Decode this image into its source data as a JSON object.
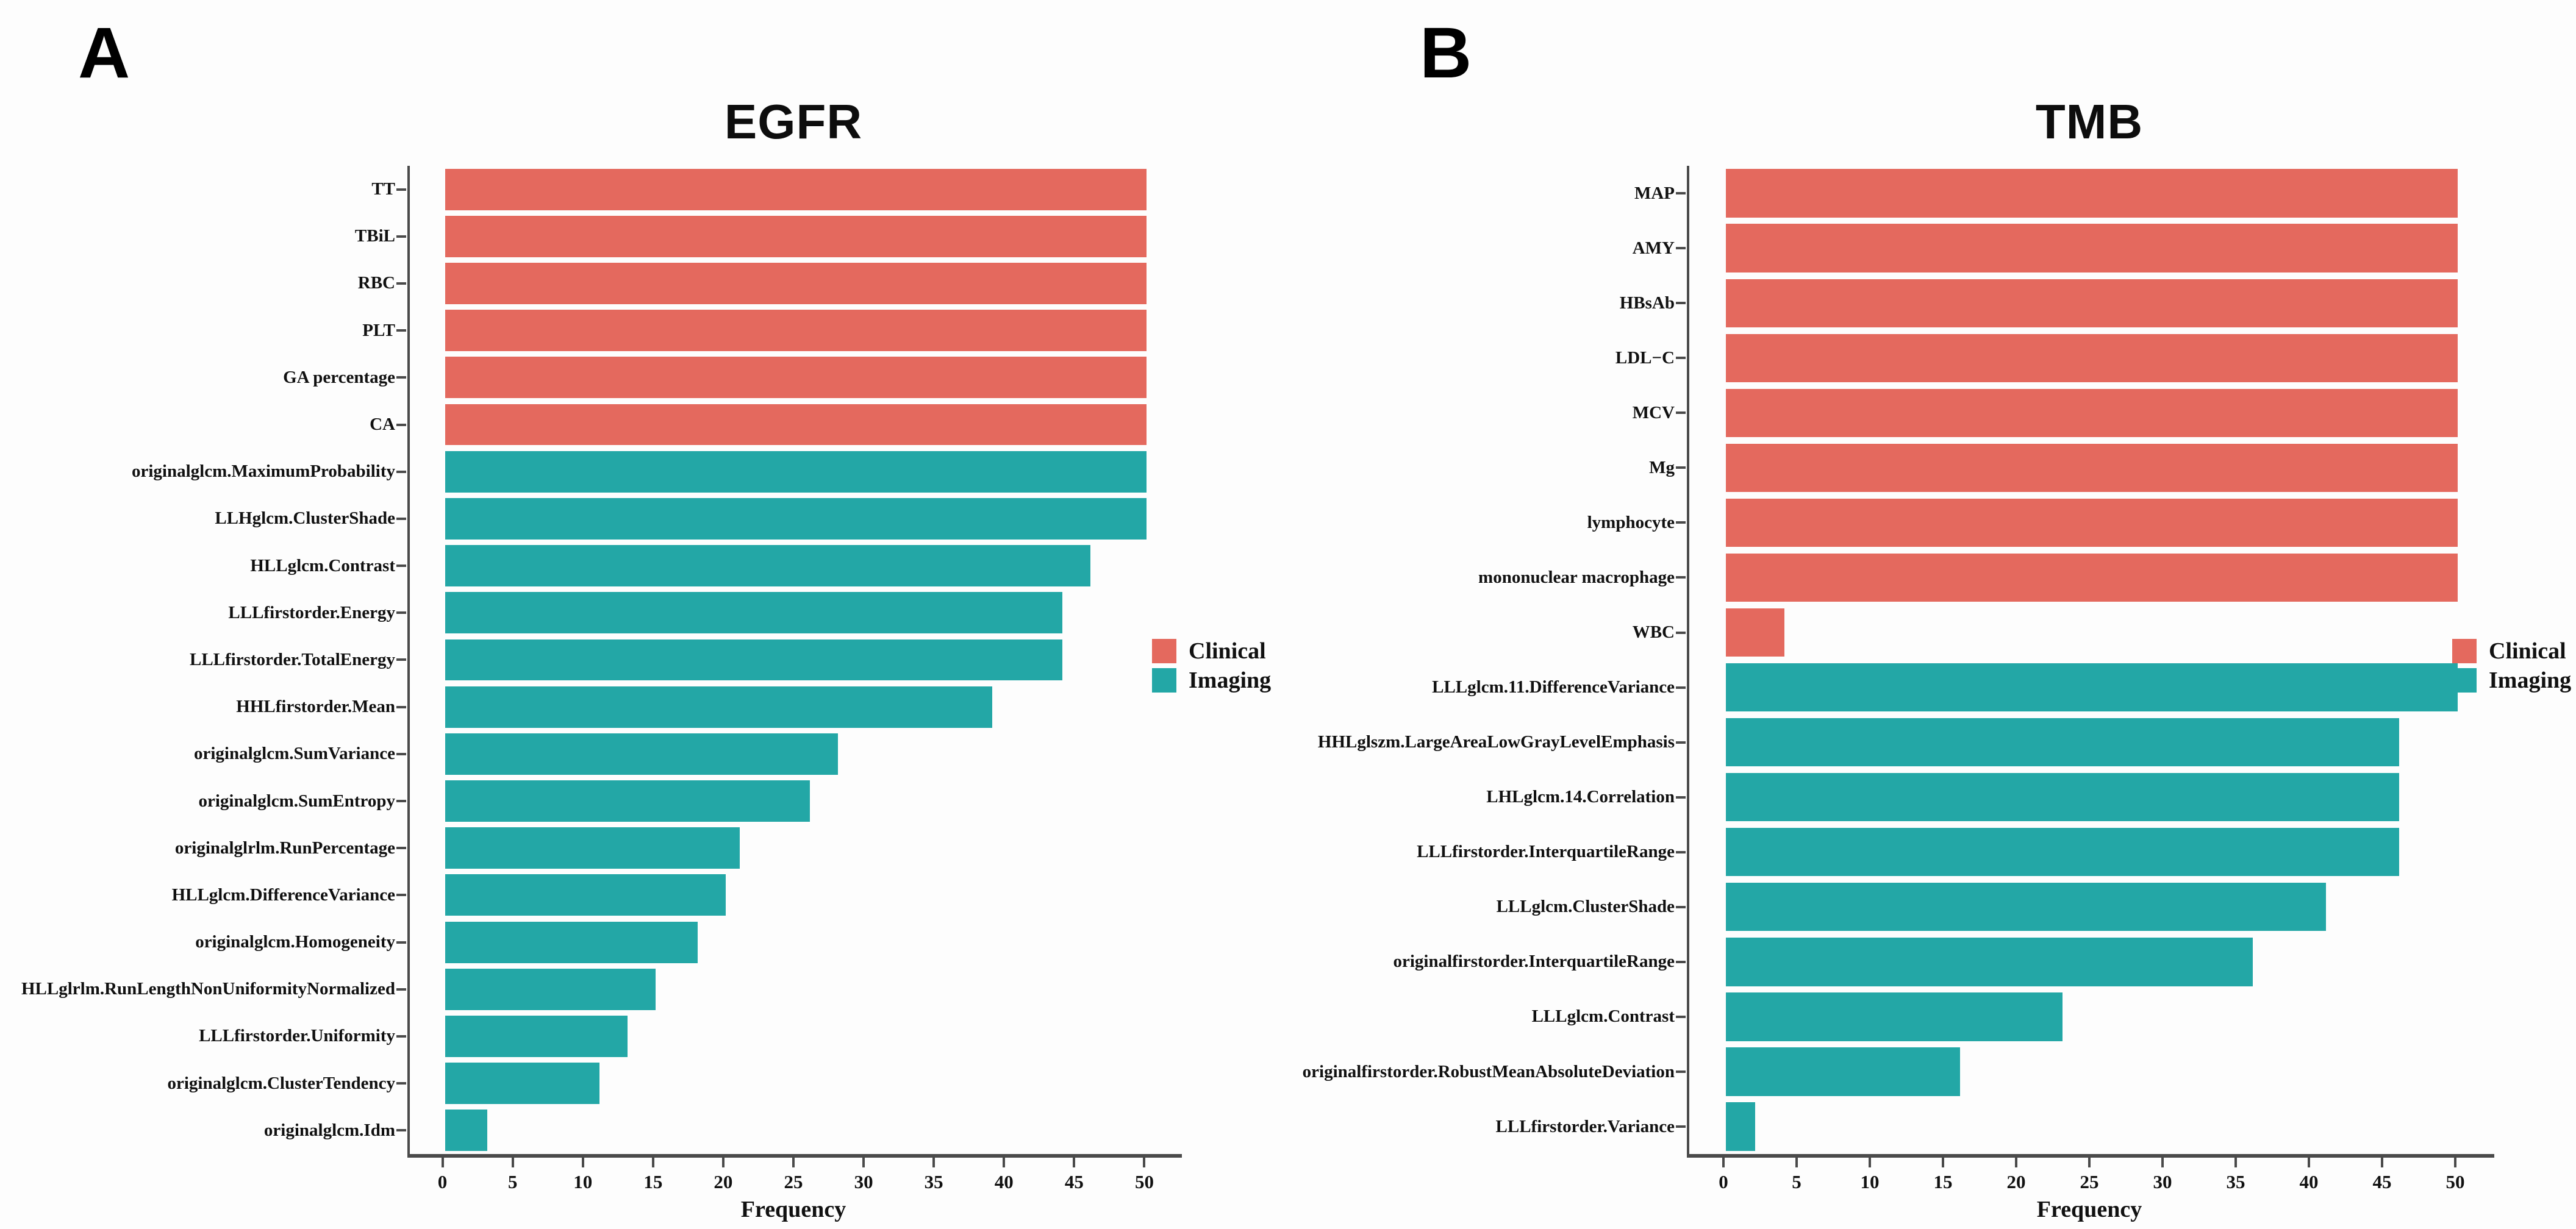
{
  "figure": {
    "background": "#fdfdfd",
    "colors": {
      "clinical": "#E4695E",
      "imaging": "#23A7A6",
      "axis": "#4a4a4a",
      "text": "#111111"
    }
  },
  "legend": {
    "clinical": "Clinical",
    "imaging": "Imaging"
  },
  "chart_data": [
    {
      "panel_letter": "A",
      "type": "bar",
      "orientation": "horizontal",
      "title": "EGFR",
      "xlabel": "Frequency",
      "xlim": [
        0,
        50
      ],
      "xticks": [
        0,
        5,
        10,
        15,
        20,
        25,
        30,
        35,
        40,
        45,
        50
      ],
      "legend_position": "right",
      "legend_entries": [
        "Clinical",
        "Imaging"
      ],
      "bars": [
        {
          "label": "TT",
          "group": "Clinical",
          "value": 50
        },
        {
          "label": "TBiL",
          "group": "Clinical",
          "value": 50
        },
        {
          "label": "RBC",
          "group": "Clinical",
          "value": 50
        },
        {
          "label": "PLT",
          "group": "Clinical",
          "value": 50
        },
        {
          "label": "GA percentage",
          "group": "Clinical",
          "value": 50
        },
        {
          "label": "CA",
          "group": "Clinical",
          "value": 50
        },
        {
          "label": "originalglcm.MaximumProbability",
          "group": "Imaging",
          "value": 50
        },
        {
          "label": "LLHglcm.ClusterShade",
          "group": "Imaging",
          "value": 50
        },
        {
          "label": "HLLglcm.Contrast",
          "group": "Imaging",
          "value": 46
        },
        {
          "label": "LLLfirstorder.Energy",
          "group": "Imaging",
          "value": 44
        },
        {
          "label": "LLLfirstorder.TotalEnergy",
          "group": "Imaging",
          "value": 44
        },
        {
          "label": "HHLfirstorder.Mean",
          "group": "Imaging",
          "value": 39
        },
        {
          "label": "originalglcm.SumVariance",
          "group": "Imaging",
          "value": 28
        },
        {
          "label": "originalglcm.SumEntropy",
          "group": "Imaging",
          "value": 26
        },
        {
          "label": "originalglrlm.RunPercentage",
          "group": "Imaging",
          "value": 21
        },
        {
          "label": "HLLglcm.DifferenceVariance",
          "group": "Imaging",
          "value": 20
        },
        {
          "label": "originalglcm.Homogeneity",
          "group": "Imaging",
          "value": 18
        },
        {
          "label": "HLLglrlm.RunLengthNonUniformityNormalized",
          "group": "Imaging",
          "value": 15
        },
        {
          "label": "LLLfirstorder.Uniformity",
          "group": "Imaging",
          "value": 13
        },
        {
          "label": "originalglcm.ClusterTendency",
          "group": "Imaging",
          "value": 11
        },
        {
          "label": "originalglcm.Idm",
          "group": "Imaging",
          "value": 3
        }
      ]
    },
    {
      "panel_letter": "B",
      "type": "bar",
      "orientation": "horizontal",
      "title": "TMB",
      "xlabel": "Frequency",
      "xlim": [
        0,
        50
      ],
      "xticks": [
        0,
        5,
        10,
        15,
        20,
        25,
        30,
        35,
        40,
        45,
        50
      ],
      "legend_position": "right",
      "legend_entries": [
        "Clinical",
        "Imaging"
      ],
      "bars": [
        {
          "label": "MAP",
          "group": "Clinical",
          "value": 50
        },
        {
          "label": "AMY",
          "group": "Clinical",
          "value": 50
        },
        {
          "label": "HBsAb",
          "group": "Clinical",
          "value": 50
        },
        {
          "label": "LDL−C",
          "group": "Clinical",
          "value": 50
        },
        {
          "label": "MCV",
          "group": "Clinical",
          "value": 50
        },
        {
          "label": "Mg",
          "group": "Clinical",
          "value": 50
        },
        {
          "label": "lymphocyte",
          "group": "Clinical",
          "value": 50
        },
        {
          "label": "mononuclear macrophage",
          "group": "Clinical",
          "value": 50
        },
        {
          "label": "WBC",
          "group": "Clinical",
          "value": 4
        },
        {
          "label": "LLLglcm.11.DifferenceVariance",
          "group": "Imaging",
          "value": 50
        },
        {
          "label": "HHLglszm.LargeAreaLowGrayLevelEmphasis",
          "group": "Imaging",
          "value": 46
        },
        {
          "label": "LHLglcm.14.Correlation",
          "group": "Imaging",
          "value": 46
        },
        {
          "label": "LLLfirstorder.InterquartileRange",
          "group": "Imaging",
          "value": 46
        },
        {
          "label": "LLLglcm.ClusterShade",
          "group": "Imaging",
          "value": 41
        },
        {
          "label": "originalfirstorder.InterquartileRange",
          "group": "Imaging",
          "value": 36
        },
        {
          "label": "LLLglcm.Contrast",
          "group": "Imaging",
          "value": 23
        },
        {
          "label": "originalfirstorder.RobustMeanAbsoluteDeviation",
          "group": "Imaging",
          "value": 16
        },
        {
          "label": "LLLfirstorder.Variance",
          "group": "Imaging",
          "value": 2
        }
      ]
    }
  ]
}
